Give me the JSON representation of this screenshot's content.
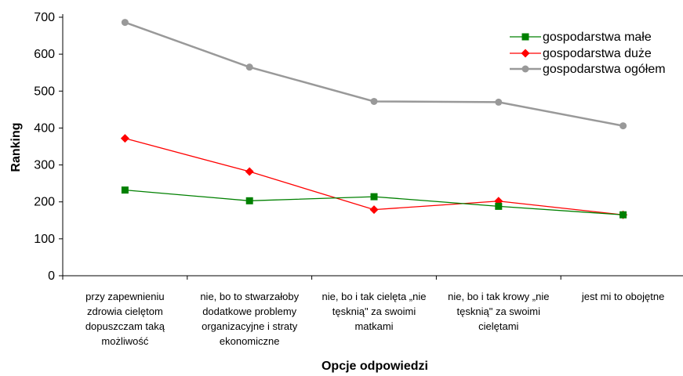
{
  "chart_data": {
    "type": "line",
    "xlabel": "Opcje odpowiedzi",
    "ylabel": "Ranking",
    "ylim": [
      0,
      700
    ],
    "yticks": [
      0,
      100,
      200,
      300,
      400,
      500,
      600,
      700
    ],
    "grid": false,
    "legend_position": "top-right",
    "categories": [
      [
        "przy zapewnieniu",
        "zdrowia cielętom",
        "dopuszczam taką",
        "możliwość"
      ],
      [
        "nie, bo to stwarzałoby",
        "dodatkowe problemy",
        "organizacyjne i straty",
        "ekonomiczne"
      ],
      [
        "nie, bo i tak cielęta „nie",
        "tęsknią\" za swoimi",
        "matkami"
      ],
      [
        "nie, bo i tak krowy „nie",
        "tęsknią\" za swoimi",
        "cielętami"
      ],
      [
        "jest mi to obojętne"
      ]
    ],
    "series": [
      {
        "name": "gospodarstwa małe",
        "color": "#008000",
        "marker": "square",
        "values": [
          232,
          203,
          214,
          188,
          165
        ]
      },
      {
        "name": "gospodarstwa duże",
        "color": "#ff0000",
        "marker": "diamond",
        "values": [
          372,
          282,
          179,
          202,
          165
        ]
      },
      {
        "name": "gospodarstwa ogółem",
        "color": "#999999",
        "marker": "circle",
        "values": [
          686,
          565,
          472,
          470,
          406
        ]
      }
    ]
  }
}
